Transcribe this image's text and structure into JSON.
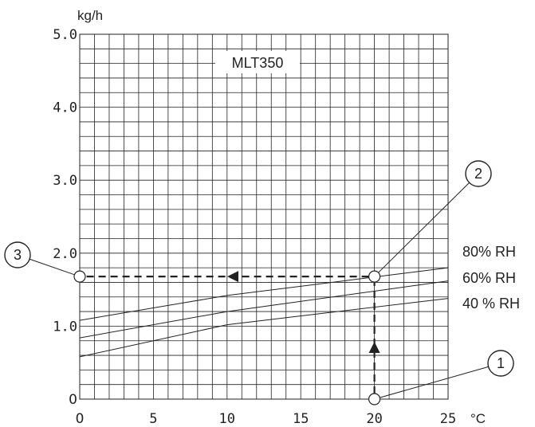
{
  "chart_data": {
    "type": "line",
    "title": "MLT350",
    "xunit": "°C",
    "yunit": "kg/h",
    "xlim": [
      0,
      25
    ],
    "ylim": [
      0,
      5
    ],
    "x_ticks": [
      {
        "value": 0,
        "label": "0"
      },
      {
        "value": 5,
        "label": "5"
      },
      {
        "value": 10,
        "label": "10"
      },
      {
        "value": 15,
        "label": "15"
      },
      {
        "value": 20,
        "label": "20"
      },
      {
        "value": 25,
        "label": "25"
      }
    ],
    "y_ticks": [
      {
        "value": 0,
        "label": "0"
      },
      {
        "value": 1,
        "label": "1.0"
      },
      {
        "value": 2,
        "label": "2.0"
      },
      {
        "value": 3,
        "label": "3.0"
      },
      {
        "value": 4,
        "label": "4.0"
      },
      {
        "value": 5,
        "label": "5.0"
      }
    ],
    "grid": true,
    "series": [
      {
        "name": "80% RH",
        "x": [
          0,
          10,
          25
        ],
        "y": [
          1.08,
          1.42,
          1.8
        ]
      },
      {
        "name": "60% RH",
        "x": [
          0,
          10,
          25
        ],
        "y": [
          0.84,
          1.2,
          1.62
        ]
      },
      {
        "name": "40 % RH",
        "x": [
          0,
          10,
          25
        ],
        "y": [
          0.58,
          1.02,
          1.38
        ]
      }
    ],
    "example_reading": {
      "points": [
        {
          "label": "1",
          "x": 20,
          "y": 0
        },
        {
          "label": "2",
          "x": 20,
          "y": 1.68
        },
        {
          "label": "3",
          "x": 0,
          "y": 1.68
        }
      ]
    }
  }
}
